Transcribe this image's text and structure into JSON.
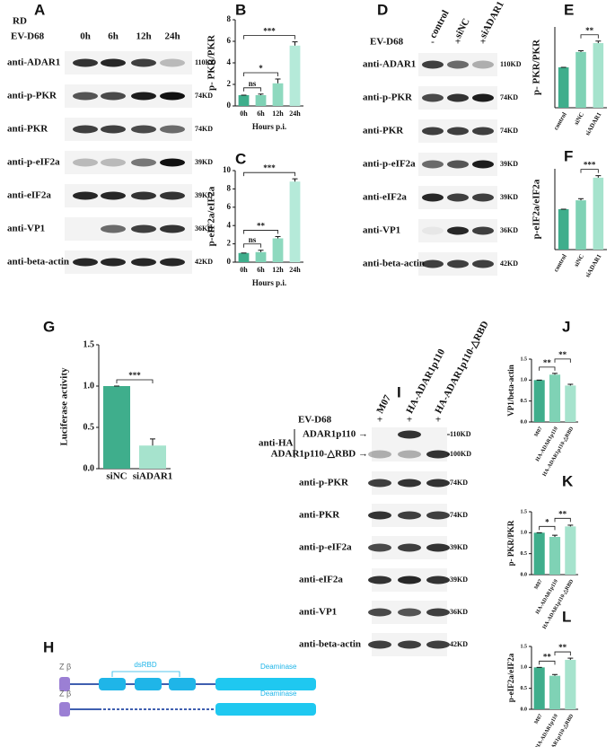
{
  "panels": {
    "A": {
      "letter": "A",
      "cell_line": "RD",
      "treatment": "EV-D68",
      "lanes": [
        "0h",
        "6h",
        "12h",
        "24h"
      ],
      "rows": [
        {
          "label": "anti-ADAR1",
          "kd": "110KD",
          "bands": [
            0.85,
            0.9,
            0.8,
            0.25
          ]
        },
        {
          "label": "anti-p-PKR",
          "kd": "74KD",
          "bands": [
            0.7,
            0.75,
            0.95,
            1
          ]
        },
        {
          "label": "anti-PKR",
          "kd": "74KD",
          "bands": [
            0.8,
            0.8,
            0.75,
            0.6
          ]
        },
        {
          "label": "anti-p-eIF2a",
          "kd": "39KD",
          "bands": [
            0.25,
            0.25,
            0.55,
            1
          ]
        },
        {
          "label": "anti-eIF2a",
          "kd": "39KD",
          "bands": [
            0.9,
            0.9,
            0.85,
            0.85
          ]
        },
        {
          "label": "anti-VP1",
          "kd": "36KD",
          "bands": [
            0,
            0.6,
            0.8,
            0.85
          ]
        },
        {
          "label": "anti-beta-actin",
          "kd": "42KD",
          "bands": [
            0.9,
            0.9,
            0.9,
            0.9
          ]
        }
      ]
    },
    "B": {
      "letter": "B",
      "chart": {
        "type": "bar",
        "y_label": "p- PKR/PKR",
        "x_label": "Hours p.i.",
        "categories": [
          "0h",
          "6h",
          "12h",
          "24h"
        ],
        "values": [
          1,
          1,
          2.1,
          5.6
        ],
        "errors": [
          0,
          0.1,
          0.4,
          0.35
        ],
        "colors": [
          "#3fae8c",
          "#7fd2b5",
          "#8fd9bf",
          "#b5ead9"
        ],
        "ylim": [
          0,
          8
        ],
        "yticks": [
          0,
          2,
          4,
          6,
          8
        ],
        "brackets": [
          {
            "between": [
              "0h",
              "6h"
            ],
            "label": "ns"
          },
          {
            "between": [
              "0h",
              "12h"
            ],
            "label": "*"
          },
          {
            "between": [
              "0h",
              "24h"
            ],
            "label": "***"
          }
        ]
      }
    },
    "C": {
      "letter": "C",
      "chart": {
        "type": "bar",
        "y_label": "p-eIF2a/eIF2a",
        "x_label": "Hours p.i.",
        "categories": [
          "0h",
          "6h",
          "12h",
          "24h"
        ],
        "values": [
          1,
          1.1,
          2.6,
          8.8
        ],
        "errors": [
          0,
          0.2,
          0.2,
          0.3
        ],
        "colors": [
          "#3fae8c",
          "#7fd2b5",
          "#8fd9bf",
          "#b5ead9"
        ],
        "ylim": [
          0,
          10
        ],
        "yticks": [
          0,
          2,
          4,
          6,
          8,
          10
        ],
        "brackets": [
          {
            "between": [
              "0h",
              "6h"
            ],
            "label": "ns"
          },
          {
            "between": [
              "0h",
              "12h"
            ],
            "label": "**"
          },
          {
            "between": [
              "0h",
              "24h"
            ],
            "label": "***"
          }
        ]
      }
    },
    "D": {
      "letter": "D",
      "treatment": {
        "label": "EV-D68",
        "marks": [
          "-",
          "+",
          "+"
        ]
      },
      "lanes": [
        "control",
        "siNC",
        "siADAR1"
      ],
      "rows": [
        {
          "label": "anti-ADAR1",
          "kd": "110KD",
          "bands": [
            0.8,
            0.6,
            0.3
          ]
        },
        {
          "label": "anti-p-PKR",
          "kd": "74KD",
          "bands": [
            0.75,
            0.85,
            0.95
          ]
        },
        {
          "label": "anti-PKR",
          "kd": "74KD",
          "bands": [
            0.8,
            0.8,
            0.8
          ]
        },
        {
          "label": "anti-p-eIF2a",
          "kd": "39KD",
          "bands": [
            0.6,
            0.7,
            0.95
          ]
        },
        {
          "label": "anti-eIF2a",
          "kd": "39KD",
          "bands": [
            0.9,
            0.8,
            0.8
          ]
        },
        {
          "label": "anti-VP1",
          "kd": "36KD",
          "bands": [
            0.05,
            0.9,
            0.8
          ]
        },
        {
          "label": "anti-beta-actin",
          "kd": "42KD",
          "bands": [
            0.8,
            0.8,
            0.8
          ]
        }
      ]
    },
    "E": {
      "letter": "E",
      "chart": {
        "type": "bar",
        "y_label": "p- PKR/PKR",
        "categories": [
          "control",
          "siNC",
          "siADAR1"
        ],
        "values": [
          1,
          1.38,
          1.6
        ],
        "errors": [
          0,
          0.03,
          0.05
        ],
        "colors": [
          "#3fae8c",
          "#7fd2b5",
          "#a6e3cd"
        ],
        "ylim": [
          0,
          2
        ],
        "brackets": [
          {
            "between": [
              "siNC",
              "siADAR1"
            ],
            "label": "**"
          }
        ]
      }
    },
    "F": {
      "letter": "F",
      "chart": {
        "type": "bar",
        "y_label": "p-eIF2a/eIF2a",
        "categories": [
          "control",
          "siNC",
          "siADAR1"
        ],
        "values": [
          1,
          1.22,
          1.78
        ],
        "errors": [
          0,
          0.04,
          0.05
        ],
        "colors": [
          "#3fae8c",
          "#7fd2b5",
          "#a6e3cd"
        ],
        "ylim": [
          0,
          2
        ],
        "brackets": [
          {
            "between": [
              "siNC",
              "siADAR1"
            ],
            "label": "***"
          }
        ]
      }
    },
    "G": {
      "letter": "G",
      "chart": {
        "type": "bar",
        "y_label": "Luciferase activity",
        "categories": [
          "siNC",
          "siADAR1"
        ],
        "values": [
          1,
          0.28
        ],
        "errors": [
          0,
          0.08
        ],
        "colors": [
          "#3fae8c",
          "#a6e3cd"
        ],
        "ylim": [
          0,
          1.5
        ],
        "yticks": [
          {
            "value": 0,
            "label": "0.0"
          },
          {
            "value": 0.5,
            "label": "0.5"
          },
          {
            "value": 1,
            "label": "1.0"
          },
          {
            "value": 1.5,
            "label": "1.5"
          }
        ],
        "brackets": [
          {
            "between": [
              "siNC",
              "siADAR1"
            ],
            "label": "***"
          }
        ]
      }
    },
    "H": {
      "letter": "H",
      "diagram": {
        "full": {
          "domain_left": "Z β",
          "dsrbd": "dsRBD",
          "deaminase": "Deaminase"
        },
        "deleted": {
          "domain_left": "Z β",
          "deaminase": "Deaminase"
        }
      }
    },
    "I": {
      "letter": "I",
      "treatment": {
        "label": "EV-D68",
        "marks": [
          "+",
          "+",
          "+"
        ]
      },
      "lanes": [
        "M07",
        "HA-ADAR1p110",
        "HA-ADAR1p110-△RBD"
      ],
      "ha": {
        "label": "anti-HA",
        "sub": [
          {
            "label": "ADAR1p110 →",
            "kd": "110KD",
            "bands": [
              0,
              0.85,
              0
            ]
          },
          {
            "label": "ADAR1p110-△RBD →",
            "kd": "100KD",
            "bands": [
              0.3,
              0.3,
              0.85
            ]
          }
        ]
      },
      "rows": [
        {
          "label": "anti-p-PKR",
          "kd": "74KD",
          "bands": [
            0.8,
            0.85,
            0.85
          ]
        },
        {
          "label": "anti-PKR",
          "kd": "74KD",
          "bands": [
            0.85,
            0.8,
            0.8
          ]
        },
        {
          "label": "anti-p-eIF2a",
          "kd": "39KD",
          "bands": [
            0.75,
            0.8,
            0.85
          ]
        },
        {
          "label": "anti-eIF2a",
          "kd": "39KD",
          "bands": [
            0.85,
            0.9,
            0.85
          ]
        },
        {
          "label": "anti-VP1",
          "kd": "36KD",
          "bands": [
            0.75,
            0.7,
            0.8
          ]
        },
        {
          "label": "anti-beta-actin",
          "kd": "42KD",
          "bands": [
            0.8,
            0.8,
            0.8
          ]
        }
      ]
    },
    "J": {
      "letter": "J",
      "chart": {
        "type": "bar",
        "y_label": "VP1/beta-actin",
        "categories": [
          "M07",
          "HA-ADAR1p110",
          "HA-ADAR1p110-△RBD"
        ],
        "values": [
          1,
          1.13,
          0.87
        ],
        "errors": [
          0,
          0.03,
          0.03
        ],
        "colors": [
          "#3fae8c",
          "#7fd2b5",
          "#a6e3cd"
        ],
        "ylim": [
          0,
          1.5
        ],
        "yticks": [
          {
            "value": 0,
            "label": "0.0"
          },
          {
            "value": 0.5,
            "label": "0.5"
          },
          {
            "value": 1,
            "label": "1.0"
          },
          {
            "value": 1.5,
            "label": "1.5"
          }
        ],
        "brackets": [
          {
            "between": [
              "M07",
              "HA-ADAR1p110"
            ],
            "label": "**"
          },
          {
            "between": [
              "HA-ADAR1p110",
              "HA-ADAR1p110-△RBD"
            ],
            "label": "**"
          }
        ]
      }
    },
    "K": {
      "letter": "K",
      "chart": {
        "type": "bar",
        "y_label": "p- PKR/PKR",
        "categories": [
          "M07",
          "HA-ADAR1p110",
          "HA-ADAR1p110-△RBD"
        ],
        "values": [
          1,
          0.9,
          1.15
        ],
        "errors": [
          0,
          0.04,
          0.03
        ],
        "colors": [
          "#3fae8c",
          "#7fd2b5",
          "#a6e3cd"
        ],
        "ylim": [
          0,
          1.5
        ],
        "yticks": [
          {
            "value": 0,
            "label": "0.0"
          },
          {
            "value": 0.5,
            "label": "0.5"
          },
          {
            "value": 1,
            "label": "1.0"
          },
          {
            "value": 1.5,
            "label": "1.5"
          }
        ],
        "brackets": [
          {
            "between": [
              "M07",
              "HA-ADAR1p110"
            ],
            "label": "*"
          },
          {
            "between": [
              "HA-ADAR1p110",
              "HA-ADAR1p110-△RBD"
            ],
            "label": "**"
          }
        ]
      }
    },
    "L": {
      "letter": "L",
      "chart": {
        "type": "bar",
        "y_label": "p-eIF2a/eIF2a",
        "categories": [
          "M07",
          "HA-ADAR1p110",
          "HA-ADAR1p110-△RBD"
        ],
        "values": [
          1,
          0.8,
          1.18
        ],
        "errors": [
          0,
          0.03,
          0.04
        ],
        "colors": [
          "#3fae8c",
          "#7fd2b5",
          "#a6e3cd"
        ],
        "ylim": [
          0,
          1.5
        ],
        "yticks": [
          {
            "value": 0,
            "label": "0.0"
          },
          {
            "value": 0.5,
            "label": "0.5"
          },
          {
            "value": 1,
            "label": "1.0"
          },
          {
            "value": 1.5,
            "label": "1.5"
          }
        ],
        "brackets": [
          {
            "between": [
              "M07",
              "HA-ADAR1p110"
            ],
            "label": "**"
          },
          {
            "between": [
              "HA-ADAR1p110",
              "HA-ADAR1p110-△RBD"
            ],
            "label": "**"
          }
        ]
      }
    }
  }
}
